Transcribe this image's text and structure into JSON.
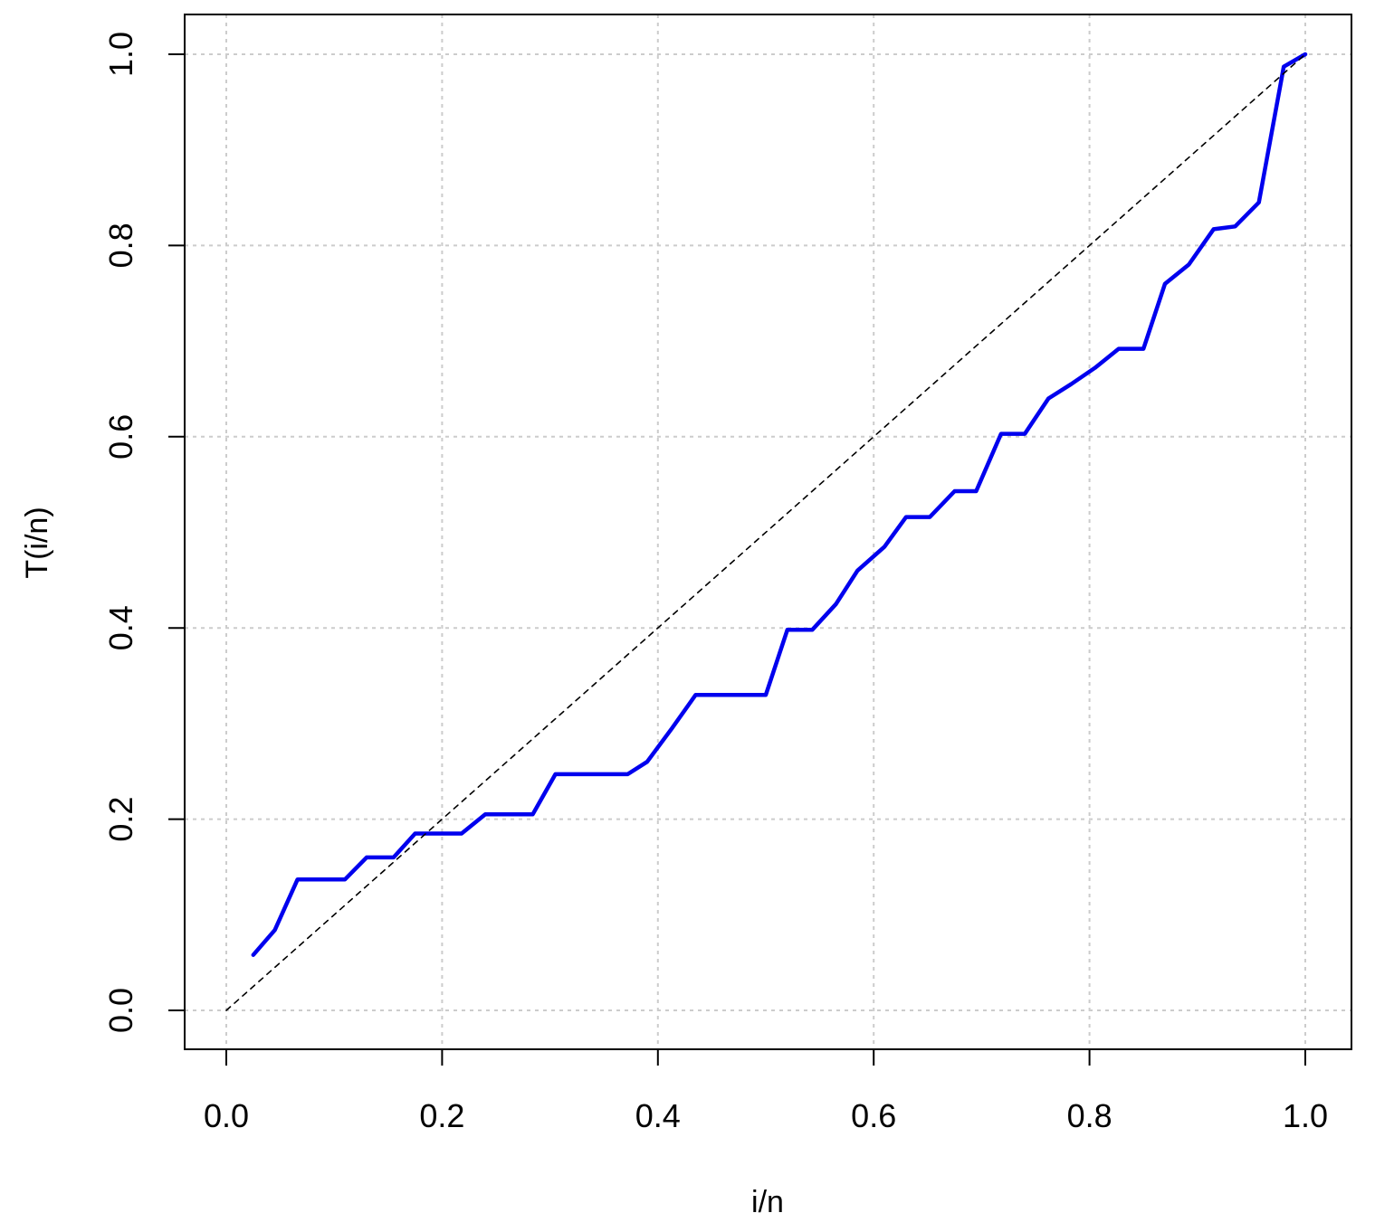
{
  "chart_data": {
    "type": "line",
    "title": "",
    "xlabel": "i/n",
    "ylabel": "T(i/n)",
    "xlim": [
      0,
      1
    ],
    "ylim": [
      0,
      1
    ],
    "grid": true,
    "x_ticks": [
      0.0,
      0.2,
      0.4,
      0.6,
      0.8,
      1.0
    ],
    "x_tick_labels": [
      "0.0",
      "0.2",
      "0.4",
      "0.6",
      "0.8",
      "1.0"
    ],
    "y_ticks": [
      0.0,
      0.2,
      0.4,
      0.6,
      0.8,
      1.0
    ],
    "y_tick_labels": [
      "0.0",
      "0.2",
      "0.4",
      "0.6",
      "0.8",
      "1.0"
    ],
    "series": [
      {
        "line_style": "solid",
        "color": "#0000ee",
        "x": [
          0.025,
          0.045,
          0.066,
          0.088,
          0.11,
          0.13,
          0.155,
          0.175,
          0.197,
          0.218,
          0.24,
          0.262,
          0.284,
          0.305,
          0.327,
          0.35,
          0.372,
          0.39,
          0.413,
          0.435,
          0.457,
          0.48,
          0.5,
          0.52,
          0.543,
          0.565,
          0.585,
          0.61,
          0.63,
          0.652,
          0.675,
          0.695,
          0.718,
          0.74,
          0.762,
          0.783,
          0.805,
          0.827,
          0.85,
          0.87,
          0.892,
          0.915,
          0.935,
          0.957,
          0.98,
          1.0
        ],
        "y": [
          0.058,
          0.084,
          0.137,
          0.137,
          0.137,
          0.16,
          0.16,
          0.185,
          0.185,
          0.185,
          0.205,
          0.205,
          0.205,
          0.247,
          0.247,
          0.247,
          0.247,
          0.26,
          0.295,
          0.33,
          0.33,
          0.33,
          0.33,
          0.398,
          0.398,
          0.425,
          0.46,
          0.485,
          0.516,
          0.516,
          0.543,
          0.543,
          0.603,
          0.603,
          0.64,
          0.655,
          0.672,
          0.692,
          0.692,
          0.76,
          0.78,
          0.817,
          0.82,
          0.845,
          0.987,
          1.0
        ]
      },
      {
        "line_style": "dashed",
        "color": "#000000",
        "x": [
          0,
          1
        ],
        "y": [
          0,
          1
        ]
      }
    ]
  }
}
